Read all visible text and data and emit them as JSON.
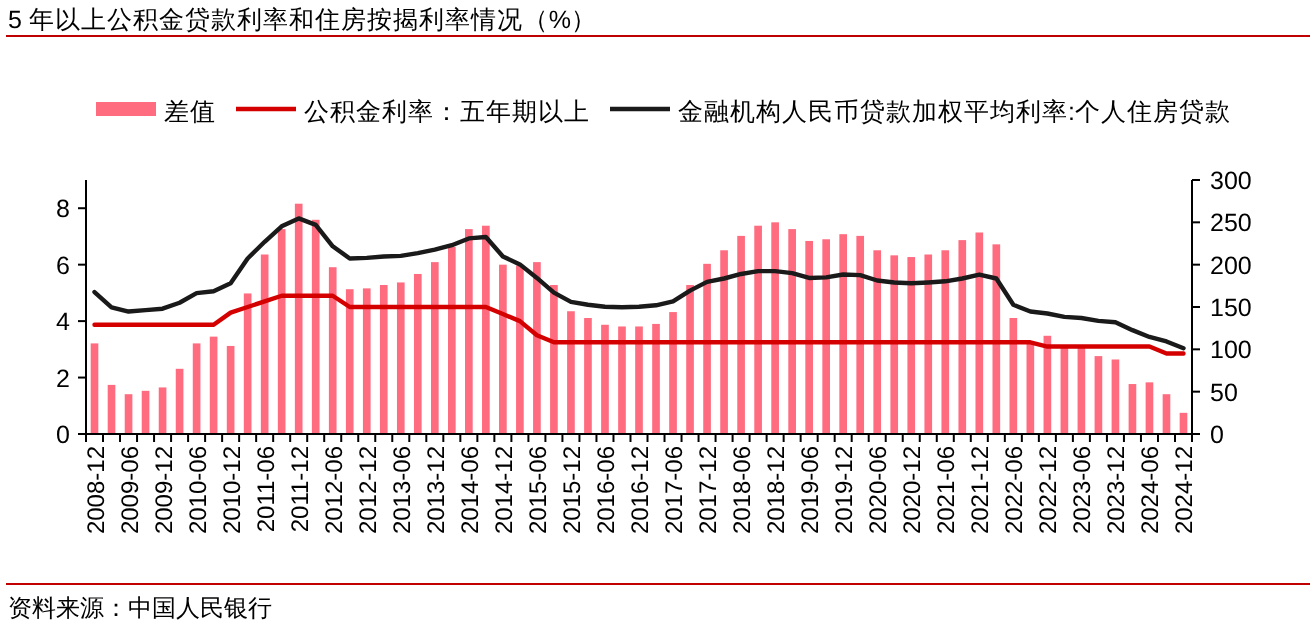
{
  "chart_data": {
    "type": "bar",
    "title": "5 年以上公积金贷款利率和住房按揭利率情况（%）",
    "annotations": [
      "资料来源：中国人民银行"
    ],
    "categories": [
      "2008-12",
      null,
      "2009-06",
      null,
      "2009-12",
      null,
      "2010-06",
      null,
      "2010-12",
      null,
      "2011-06",
      null,
      "2011-12",
      null,
      "2012-06",
      null,
      "2012-12",
      null,
      "2013-06",
      null,
      "2013-12",
      null,
      "2014-06",
      null,
      "2014-12",
      null,
      "2015-06",
      null,
      "2015-12",
      null,
      "2016-06",
      null,
      "2016-12",
      null,
      "2017-06",
      null,
      "2017-12",
      null,
      "2018-06",
      null,
      "2018-12",
      null,
      "2019-06",
      null,
      "2019-12",
      null,
      "2020-06",
      null,
      "2020-12",
      null,
      "2021-06",
      null,
      "2021-12",
      null,
      "2022-06",
      null,
      "2022-12",
      null,
      "2023-06",
      null,
      "2023-12",
      null,
      "2024-06",
      null,
      "2024-12"
    ],
    "series": [
      {
        "name": "差值",
        "axis": "y2",
        "color": "#ff6b7f",
        "values": [
          107,
          58,
          47,
          51,
          55,
          77,
          107,
          115,
          104,
          166,
          212,
          242,
          272,
          253,
          197,
          171,
          172,
          176,
          179,
          189,
          203,
          221,
          242,
          246,
          200,
          199,
          203,
          176,
          145,
          137,
          129,
          127,
          127,
          130,
          144,
          176,
          201,
          217,
          234,
          246,
          250,
          242,
          228,
          230,
          236,
          234,
          217,
          211,
          209,
          212,
          217,
          229,
          238,
          224,
          137,
          107,
          116,
          103,
          103,
          92,
          88,
          59,
          61,
          47,
          25
        ]
      },
      {
        "name": "公积金利率：五年期以上",
        "type": "line",
        "color": "#d40000",
        "values": [
          3.87,
          3.87,
          3.87,
          3.87,
          3.87,
          3.87,
          3.87,
          3.87,
          4.3,
          4.5,
          4.7,
          4.9,
          4.9,
          4.9,
          4.9,
          4.5,
          4.5,
          4.5,
          4.5,
          4.5,
          4.5,
          4.5,
          4.5,
          4.5,
          4.25,
          4.0,
          3.5,
          3.25,
          3.25,
          3.25,
          3.25,
          3.25,
          3.25,
          3.25,
          3.25,
          3.25,
          3.25,
          3.25,
          3.25,
          3.25,
          3.25,
          3.25,
          3.25,
          3.25,
          3.25,
          3.25,
          3.25,
          3.25,
          3.25,
          3.25,
          3.25,
          3.25,
          3.25,
          3.25,
          3.25,
          3.25,
          3.1,
          3.1,
          3.1,
          3.1,
          3.1,
          3.1,
          3.1,
          2.85,
          2.85
        ]
      },
      {
        "name": "金融机构人民币贷款加权平均利率:个人住房贷款",
        "type": "line",
        "color": "#1a1a1a",
        "values": [
          5.03,
          4.49,
          4.34,
          4.39,
          4.44,
          4.65,
          4.99,
          5.06,
          5.34,
          6.22,
          6.81,
          7.36,
          7.64,
          7.41,
          6.65,
          6.22,
          6.24,
          6.29,
          6.31,
          6.41,
          6.53,
          6.69,
          6.93,
          6.98,
          6.29,
          6.01,
          5.53,
          5.01,
          4.68,
          4.58,
          4.51,
          4.49,
          4.51,
          4.56,
          4.7,
          5.08,
          5.39,
          5.51,
          5.67,
          5.77,
          5.77,
          5.7,
          5.53,
          5.55,
          5.65,
          5.63,
          5.44,
          5.37,
          5.34,
          5.37,
          5.41,
          5.51,
          5.65,
          5.51,
          4.58,
          4.34,
          4.27,
          4.15,
          4.11,
          4.01,
          3.96,
          3.68,
          3.44,
          3.28,
          3.04
        ]
      }
    ],
    "ylim": [
      0,
      9
    ],
    "yticks": [
      0,
      2,
      4,
      6,
      8
    ],
    "y2lim": [
      0,
      300
    ],
    "y2ticks": [
      0,
      50,
      100,
      150,
      200,
      250,
      300
    ],
    "legend": "top"
  }
}
